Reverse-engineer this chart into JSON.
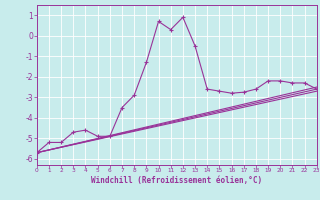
{
  "xlabel": "Windchill (Refroidissement éolien,°C)",
  "bg_color": "#c8ecec",
  "grid_color": "#aadddd",
  "line_color": "#993399",
  "xlim": [
    0,
    23
  ],
  "ylim": [
    -6.3,
    1.5
  ],
  "yticks": [
    1,
    0,
    -1,
    -2,
    -3,
    -4,
    -5,
    -6
  ],
  "xticks": [
    0,
    1,
    2,
    3,
    4,
    5,
    6,
    7,
    8,
    9,
    10,
    11,
    12,
    13,
    14,
    15,
    16,
    17,
    18,
    19,
    20,
    21,
    22,
    23
  ],
  "series1_x": [
    0,
    1,
    2,
    3,
    4,
    5,
    6,
    7,
    8,
    9,
    10,
    11,
    12,
    13,
    14,
    15,
    16,
    17,
    18,
    19,
    20,
    21,
    22,
    23
  ],
  "series1_y": [
    -5.7,
    -5.2,
    -5.2,
    -4.7,
    -4.6,
    -4.9,
    -4.9,
    -3.5,
    -2.9,
    -1.3,
    0.7,
    0.3,
    0.9,
    -0.5,
    -2.6,
    -2.7,
    -2.8,
    -2.75,
    -2.6,
    -2.2,
    -2.2,
    -2.3,
    -2.3,
    -2.6
  ],
  "series2_x": [
    0,
    23
  ],
  "series2_y": [
    -5.7,
    -2.6
  ],
  "series3_x": [
    0,
    23
  ],
  "series3_y": [
    -5.7,
    -2.5
  ],
  "series4_x": [
    0,
    23
  ],
  "series4_y": [
    -5.7,
    -2.7
  ]
}
